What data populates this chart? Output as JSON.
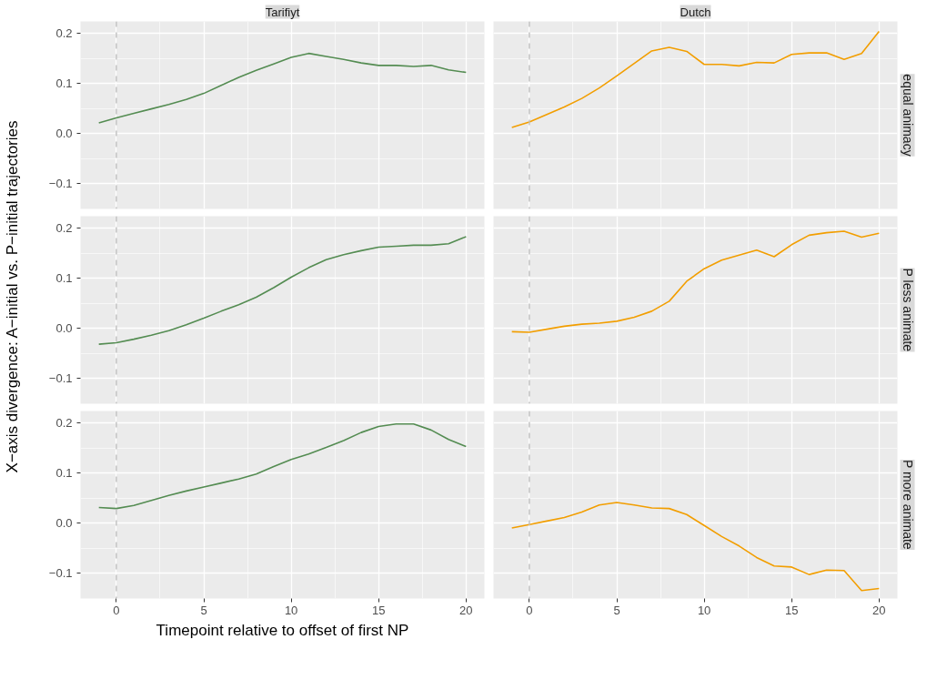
{
  "chart_data": [
    {
      "type": "line",
      "title": "Tarifiyt",
      "x": [
        -1,
        0,
        1,
        2,
        3,
        4,
        5,
        6,
        7,
        8,
        9,
        10,
        11,
        12,
        13,
        14,
        15,
        16,
        17,
        18,
        19,
        20
      ],
      "series": [
        {
          "color": "#548c52",
          "values": [
            0.021,
            0.031,
            0.04,
            0.049,
            0.058,
            0.068,
            0.08,
            0.096,
            0.112,
            0.126,
            0.139,
            0.152,
            0.16,
            0.154,
            0.148,
            0.141,
            0.136,
            0.136,
            0.134,
            0.136,
            0.127,
            0.122
          ]
        }
      ],
      "xlim": [
        -2.05,
        21.05
      ],
      "ylim": [
        -0.151,
        0.224
      ],
      "xticks": [
        0,
        5,
        10,
        15,
        20
      ],
      "yticks": [
        {
          "value": -0.1,
          "label": "−0.1"
        },
        {
          "value": 0,
          "label": "0.0"
        },
        {
          "value": 0.1,
          "label": "0.1"
        },
        {
          "value": 0.2,
          "label": "0.2"
        }
      ],
      "ref_lines": [
        {
          "axis": "x",
          "value": 0,
          "color": "#bebebe",
          "line_style": "dashed"
        }
      ],
      "grid": true,
      "tick_labels": "y"
    },
    {
      "type": "line",
      "title": "Dutch",
      "y2label": "equal animacy",
      "x": [
        -1,
        0,
        1,
        2,
        3,
        4,
        5,
        6,
        7,
        8,
        9,
        10,
        11,
        12,
        13,
        14,
        15,
        16,
        17,
        18,
        19,
        20
      ],
      "series": [
        {
          "color": "#f29e00",
          "values": [
            0.012,
            0.023,
            0.038,
            0.053,
            0.07,
            0.091,
            0.115,
            0.14,
            0.165,
            0.172,
            0.164,
            0.138,
            0.138,
            0.135,
            0.142,
            0.141,
            0.158,
            0.161,
            0.161,
            0.148,
            0.16,
            0.204
          ]
        }
      ],
      "xlim": [
        -2.05,
        21.05
      ],
      "ylim": [
        -0.151,
        0.224
      ],
      "xticks": [
        0,
        5,
        10,
        15,
        20
      ],
      "yticks": [
        -0.1,
        0,
        0.1,
        0.2
      ],
      "ref_lines": [
        {
          "axis": "x",
          "value": 0,
          "color": "#bebebe",
          "line_style": "dashed"
        }
      ],
      "grid": true,
      "tick_labels": false
    },
    {
      "type": "line",
      "ylabel": "X−axis divergence: A−initial vs. P−initial trajectories",
      "x": [
        -1,
        0,
        1,
        2,
        3,
        4,
        5,
        6,
        7,
        8,
        9,
        10,
        11,
        12,
        13,
        14,
        15,
        16,
        17,
        18,
        19,
        20
      ],
      "series": [
        {
          "color": "#548c52",
          "values": [
            -0.032,
            -0.029,
            -0.022,
            -0.014,
            -0.005,
            0.007,
            0.02,
            0.034,
            0.047,
            0.062,
            0.081,
            0.102,
            0.121,
            0.137,
            0.147,
            0.155,
            0.162,
            0.164,
            0.166,
            0.166,
            0.169,
            0.183
          ]
        }
      ],
      "xlim": [
        -2.05,
        21.05
      ],
      "ylim": [
        -0.151,
        0.224
      ],
      "xticks": [
        0,
        5,
        10,
        15,
        20
      ],
      "yticks": [
        {
          "value": -0.1,
          "label": "−0.1"
        },
        {
          "value": 0,
          "label": "0.0"
        },
        {
          "value": 0.1,
          "label": "0.1"
        },
        {
          "value": 0.2,
          "label": "0.2"
        }
      ],
      "ref_lines": [
        {
          "axis": "x",
          "value": 0,
          "color": "#bebebe",
          "line_style": "dashed"
        }
      ],
      "grid": true,
      "tick_labels": "y"
    },
    {
      "type": "line",
      "y2label": "P less animate",
      "x": [
        -1,
        0,
        1,
        2,
        3,
        4,
        5,
        6,
        7,
        8,
        9,
        10,
        11,
        12,
        13,
        14,
        15,
        16,
        17,
        18,
        19,
        20
      ],
      "series": [
        {
          "color": "#f29e00",
          "values": [
            -0.007,
            -0.008,
            -0.002,
            0.004,
            0.008,
            0.01,
            0.014,
            0.022,
            0.034,
            0.054,
            0.094,
            0.119,
            0.136,
            0.146,
            0.156,
            0.143,
            0.167,
            0.186,
            0.191,
            0.194,
            0.182,
            0.19
          ]
        }
      ],
      "xlim": [
        -2.05,
        21.05
      ],
      "ylim": [
        -0.151,
        0.224
      ],
      "xticks": [
        0,
        5,
        10,
        15,
        20
      ],
      "yticks": [
        -0.1,
        0,
        0.1,
        0.2
      ],
      "ref_lines": [
        {
          "axis": "x",
          "value": 0,
          "color": "#bebebe",
          "line_style": "dashed"
        }
      ],
      "grid": true,
      "tick_labels": false
    },
    {
      "type": "line",
      "xlabel": "Timepoint relative to offset of first NP",
      "x": [
        -1,
        0,
        1,
        2,
        3,
        4,
        5,
        6,
        7,
        8,
        9,
        10,
        11,
        12,
        13,
        14,
        15,
        16,
        17,
        18,
        19,
        20
      ],
      "series": [
        {
          "color": "#548c52",
          "values": [
            0.031,
            0.029,
            0.035,
            0.045,
            0.055,
            0.064,
            0.072,
            0.08,
            0.088,
            0.098,
            0.113,
            0.127,
            0.138,
            0.151,
            0.165,
            0.181,
            0.193,
            0.198,
            0.198,
            0.186,
            0.167,
            0.153
          ]
        }
      ],
      "xlim": [
        -2.05,
        21.05
      ],
      "ylim": [
        -0.151,
        0.224
      ],
      "xticks": [
        0,
        5,
        10,
        15,
        20
      ],
      "yticks": [
        {
          "value": -0.1,
          "label": "−0.1"
        },
        {
          "value": 0,
          "label": "0.0"
        },
        {
          "value": 0.1,
          "label": "0.1"
        },
        {
          "value": 0.2,
          "label": "0.2"
        }
      ],
      "ref_lines": [
        {
          "axis": "x",
          "value": 0,
          "color": "#bebebe",
          "line_style": "dashed"
        }
      ],
      "grid": true
    },
    {
      "type": "line",
      "y2label": "P more animate",
      "x": [
        -1,
        0,
        1,
        2,
        3,
        4,
        5,
        6,
        7,
        8,
        9,
        10,
        11,
        12,
        13,
        14,
        15,
        16,
        17,
        18,
        19,
        20
      ],
      "series": [
        {
          "color": "#f29e00",
          "values": [
            -0.01,
            -0.003,
            0.004,
            0.011,
            0.022,
            0.036,
            0.041,
            0.036,
            0.03,
            0.029,
            0.017,
            -0.005,
            -0.027,
            -0.046,
            -0.069,
            -0.086,
            -0.088,
            -0.103,
            -0.094,
            -0.095,
            -0.135,
            -0.131
          ]
        }
      ],
      "xlim": [
        -2.05,
        21.05
      ],
      "ylim": [
        -0.151,
        0.224
      ],
      "xticks": [
        0,
        5,
        10,
        15,
        20
      ],
      "yticks": [
        -0.1,
        0,
        0.1,
        0.2
      ],
      "ref_lines": [
        {
          "axis": "x",
          "value": 0,
          "color": "#bebebe",
          "line_style": "dashed"
        }
      ],
      "grid": true,
      "tick_labels": "x"
    }
  ]
}
